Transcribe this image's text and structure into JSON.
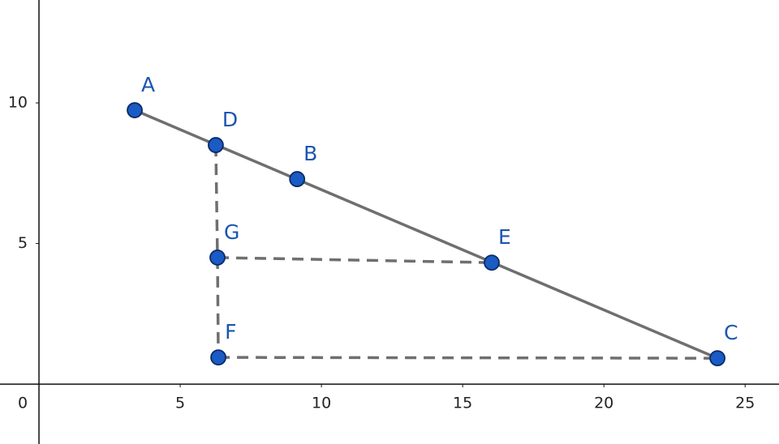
{
  "chart_data": {
    "type": "scatter",
    "origin_label": "0",
    "xlim": [
      -1.38,
      26.2
    ],
    "ylim": [
      -2.13,
      13.66
    ],
    "xticks": [
      5,
      10,
      15,
      20,
      25
    ],
    "yticks": [
      5,
      10
    ],
    "grid": false,
    "point_color": "#1a5bc4",
    "point_stroke": "#0b2a66",
    "label_color": "#1a56b0",
    "line_color": "#6f6f6f",
    "points": [
      {
        "label": "A",
        "x": 3.39,
        "y": 9.74
      },
      {
        "label": "D",
        "x": 6.26,
        "y": 8.5
      },
      {
        "label": "B",
        "x": 9.14,
        "y": 7.29
      },
      {
        "label": "G",
        "x": 6.32,
        "y": 4.5
      },
      {
        "label": "E",
        "x": 16.03,
        "y": 4.32
      },
      {
        "label": "F",
        "x": 6.35,
        "y": 0.95
      },
      {
        "label": "C",
        "x": 24.02,
        "y": 0.92
      }
    ],
    "segments": [
      {
        "from": 0,
        "to": 6,
        "dashed": false
      },
      {
        "from": 1,
        "to": 3,
        "dashed": true
      },
      {
        "from": 3,
        "to": 5,
        "dashed": true
      },
      {
        "from": 3,
        "to": 4,
        "dashed": true
      },
      {
        "from": 5,
        "to": 6,
        "dashed": true
      }
    ]
  }
}
